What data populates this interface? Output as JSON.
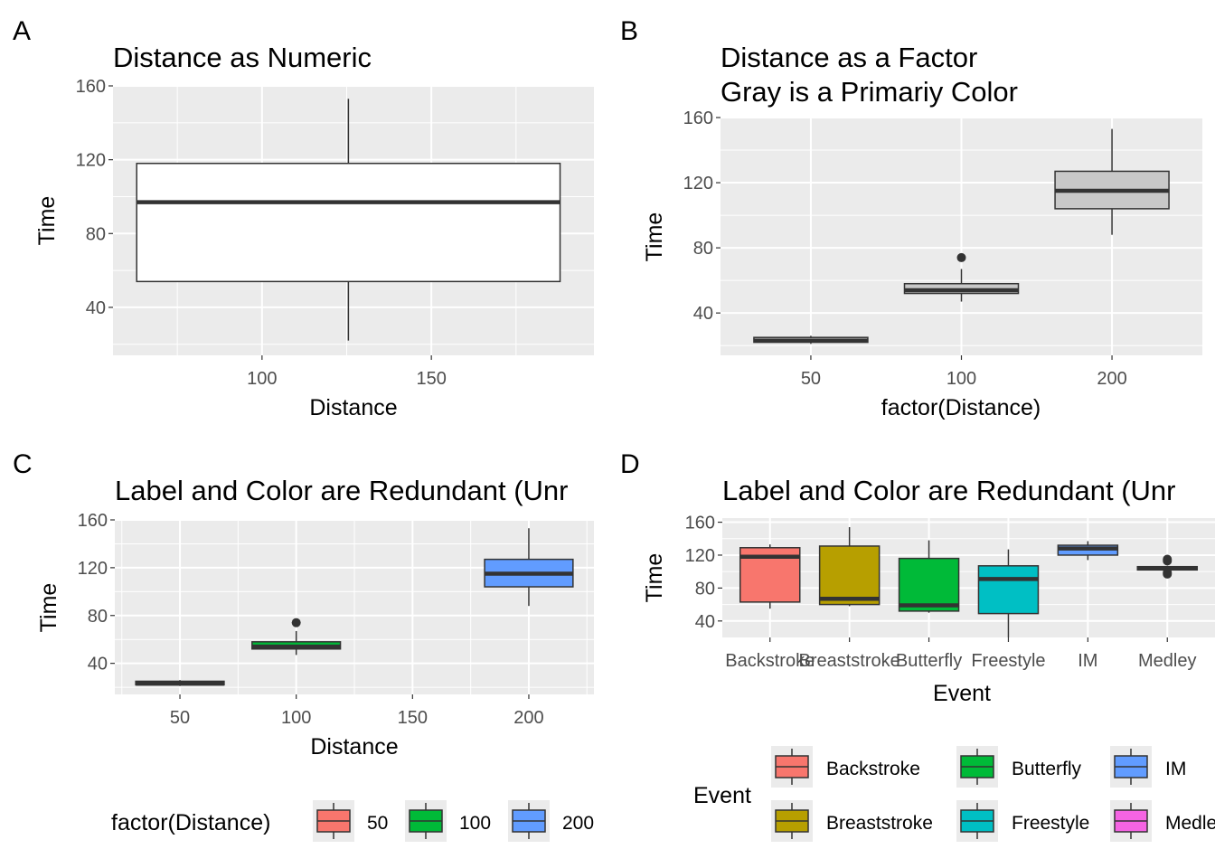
{
  "chart_data": [
    {
      "panel": "A",
      "type": "box",
      "title": "Distance as Numeric",
      "xlabel": "Distance",
      "ylabel": "Time",
      "xlim": [
        56,
        198
      ],
      "ylim": [
        14,
        160
      ],
      "x_ticks": [
        100,
        150
      ],
      "y_ticks": [
        40,
        80,
        120,
        160
      ],
      "grid": true,
      "boxes": [
        {
          "x_min": 63,
          "x_max": 188,
          "ymin": 22,
          "q1": 54,
          "median": 97,
          "q3": 118,
          "ymax": 153,
          "fill": "#ffffff",
          "outliers": []
        }
      ]
    },
    {
      "panel": "B",
      "type": "box",
      "title": "Distance as a Factor",
      "subtitle": "Gray is a Primariy Color",
      "xlabel": "factor(Distance)",
      "ylabel": "Time",
      "categories": [
        "50",
        "100",
        "200"
      ],
      "ylim": [
        14,
        160
      ],
      "y_ticks": [
        40,
        80,
        120,
        160
      ],
      "grid": true,
      "boxes": [
        {
          "category": "50",
          "ymin": 21,
          "q1": 22,
          "median": 23,
          "q3": 25,
          "ymax": 26,
          "fill": "#c8c8c8",
          "outliers": []
        },
        {
          "category": "100",
          "ymin": 47,
          "q1": 52,
          "median": 54,
          "q3": 58,
          "ymax": 67,
          "fill": "#c8c8c8",
          "outliers": [
            74
          ]
        },
        {
          "category": "200",
          "ymin": 88,
          "q1": 104,
          "median": 115,
          "q3": 127,
          "ymax": 153,
          "fill": "#c8c8c8",
          "outliers": []
        }
      ]
    },
    {
      "panel": "C",
      "type": "box",
      "title": "Label and Color are Redundant (Unr",
      "xlabel": "Distance",
      "ylabel": "Time",
      "xlim": [
        22,
        228
      ],
      "ylim": [
        14,
        160
      ],
      "x_ticks": [
        50,
        100,
        150,
        200
      ],
      "y_ticks": [
        40,
        80,
        120,
        160
      ],
      "grid": true,
      "boxes": [
        {
          "x_min": 31,
          "x_max": 69,
          "ymin": 21,
          "q1": 22,
          "median": 23,
          "q3": 25,
          "ymax": 26,
          "fill": "#F8766D",
          "outliers": []
        },
        {
          "x_min": 81,
          "x_max": 119,
          "ymin": 47,
          "q1": 52,
          "median": 54,
          "q3": 58,
          "ymax": 67,
          "fill": "#00BA38",
          "outliers": [
            74
          ]
        },
        {
          "x_min": 181,
          "x_max": 219,
          "ymin": 88,
          "q1": 104,
          "median": 115,
          "q3": 127,
          "ymax": 153,
          "fill": "#619CFF",
          "outliers": []
        }
      ],
      "legend": {
        "title": "factor(Distance)",
        "position": "bottom",
        "items": [
          {
            "label": "50",
            "color": "#F8766D"
          },
          {
            "label": "100",
            "color": "#00BA38"
          },
          {
            "label": "200",
            "color": "#619CFF"
          }
        ]
      }
    },
    {
      "panel": "D",
      "type": "box",
      "title": "Label and Color are Redundant (Unr",
      "xlabel": "Event",
      "ylabel": "Time",
      "categories": [
        "Backstroke",
        "Breaststroke",
        "Butterfly",
        "Freestyle",
        "IM",
        "Medley"
      ],
      "ylim": [
        20,
        165
      ],
      "y_ticks": [
        40,
        80,
        120,
        160
      ],
      "grid": true,
      "boxes": [
        {
          "category": "Backstroke",
          "ymin": 55,
          "q1": 63,
          "median": 118,
          "q3": 129,
          "ymax": 133,
          "fill": "#F8766D",
          "outliers": []
        },
        {
          "category": "Breaststroke",
          "ymin": 58,
          "q1": 60,
          "median": 67,
          "q3": 131,
          "ymax": 154,
          "fill": "#B79F00",
          "outliers": []
        },
        {
          "category": "Butterfly",
          "ymin": 50,
          "q1": 52,
          "median": 59,
          "q3": 116,
          "ymax": 138,
          "fill": "#00BA38",
          "outliers": []
        },
        {
          "category": "Freestyle",
          "ymin": 20,
          "q1": 49,
          "median": 91,
          "q3": 107,
          "ymax": 127,
          "fill": "#00BFC4",
          "outliers": []
        },
        {
          "category": "IM",
          "ymin": 114,
          "q1": 120,
          "median": 128,
          "q3": 132,
          "ymax": 137,
          "fill": "#619CFF",
          "outliers": []
        },
        {
          "category": "Medley",
          "ymin": 102,
          "q1": 102,
          "median": 104,
          "q3": 106,
          "ymax": 107,
          "fill": "#F564E3",
          "outliers": [
            97,
            99,
            113,
            115
          ]
        }
      ],
      "legend": {
        "title": "Event",
        "position": "bottom",
        "items": [
          {
            "label": "Backstroke",
            "color": "#F8766D"
          },
          {
            "label": "Butterfly",
            "color": "#00BA38"
          },
          {
            "label": "IM",
            "color": "#619CFF"
          },
          {
            "label": "Breaststroke",
            "color": "#B79F00"
          },
          {
            "label": "Freestyle",
            "color": "#00BFC4"
          },
          {
            "label": "Medley",
            "color": "#F564E3"
          }
        ]
      }
    }
  ],
  "colors": {
    "panel_background": "#ebebeb",
    "grid": "#ffffff",
    "box_line": "#333333"
  }
}
